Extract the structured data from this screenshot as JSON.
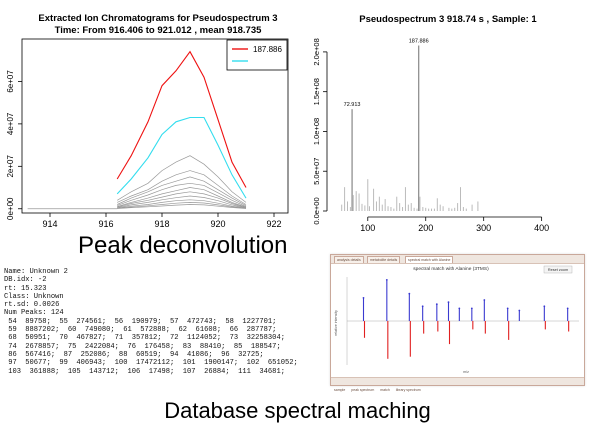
{
  "chart_data": [
    {
      "type": "line",
      "title": "Extracted Ion Chromatograms for  Pseudospectrum 3",
      "subtitle": "Time: From 916.406 to 921.012 , mean 918.735",
      "xlabel": "",
      "ylabel": "",
      "xlim": [
        913,
        922.5
      ],
      "ylim": [
        -2000000,
        80000000
      ],
      "xticks": [
        914,
        916,
        918,
        920,
        922
      ],
      "yticks": [
        0,
        20000000,
        40000000,
        60000000
      ],
      "ytick_labels": [
        "0e+00",
        "2e+07",
        "4e+07",
        "6e+07"
      ],
      "legend": {
        "position": "top-right",
        "entries": [
          {
            "label": "187.886",
            "color": "#ee1111"
          },
          {
            "label": "",
            "color": "#33ddee"
          }
        ]
      },
      "x": [
        916.4,
        916.9,
        917.5,
        918.0,
        918.5,
        919.0,
        919.5,
        920.0,
        920.5,
        921.0
      ],
      "series": [
        {
          "name": "187.886",
          "color": "#ee1111",
          "values": [
            14000000,
            25000000,
            41000000,
            58000000,
            65000000,
            74000000,
            62000000,
            42000000,
            22000000,
            10000000
          ]
        },
        {
          "color": "#33ddee",
          "values": [
            7000000,
            14000000,
            24000000,
            35000000,
            41000000,
            43000000,
            43000000,
            30000000,
            16000000,
            5000000
          ]
        },
        {
          "color": "#999999",
          "values": [
            4000000,
            8000000,
            12000000,
            18000000,
            22000000,
            25000000,
            21000000,
            15000000,
            8000000,
            3000000
          ]
        },
        {
          "color": "#999999",
          "values": [
            3000000,
            6000000,
            9000000,
            13000000,
            16000000,
            18000000,
            16000000,
            11000000,
            6000000,
            2000000
          ]
        },
        {
          "color": "#999999",
          "values": [
            2000000,
            5000000,
            8000000,
            11000000,
            13000000,
            15000000,
            13000000,
            9000000,
            5000000,
            1500000
          ]
        },
        {
          "color": "#999999",
          "values": [
            1500000,
            4000000,
            6500000,
            9000000,
            11000000,
            12000000,
            11000000,
            7500000,
            4000000,
            1000000
          ]
        },
        {
          "color": "#999999",
          "values": [
            1000000,
            3000000,
            5000000,
            7000000,
            8500000,
            10000000,
            9000000,
            6000000,
            3000000,
            800000
          ]
        },
        {
          "color": "#999999",
          "values": [
            800000,
            2500000,
            4000000,
            5500000,
            7000000,
            8000000,
            7000000,
            5000000,
            2500000,
            600000
          ]
        },
        {
          "color": "#999999",
          "values": [
            500000,
            1800000,
            3000000,
            4200000,
            5200000,
            6000000,
            5300000,
            3800000,
            1800000,
            400000
          ]
        },
        {
          "color": "#999999",
          "values": [
            300000,
            1200000,
            2000000,
            3000000,
            3800000,
            4200000,
            3800000,
            2600000,
            1200000,
            300000
          ]
        },
        {
          "color": "#999999",
          "values": [
            200000,
            800000,
            1400000,
            2000000,
            2600000,
            3000000,
            2700000,
            1800000,
            900000,
            200000
          ]
        },
        {
          "color": "#999999",
          "values": [
            100000,
            500000,
            900000,
            1300000,
            1700000,
            2000000,
            1800000,
            1200000,
            600000,
            100000
          ]
        }
      ],
      "baseline_x": [
        913.2,
        916.4
      ],
      "grid": false
    },
    {
      "type": "bar",
      "title": "Pseudospectrum 3 918.74 s , Sample: 1",
      "xlabel": "",
      "ylabel": "",
      "xlim": [
        40,
        480
      ],
      "ylim": [
        0,
        220000000
      ],
      "xticks": [
        100,
        200,
        300,
        400
      ],
      "yticks": [
        0,
        50000000,
        100000000,
        150000000,
        200000000
      ],
      "ytick_labels": [
        "0.0e+00",
        "5.0e+07",
        "1.0e+08",
        "1.5e+08",
        "2.0e+08"
      ],
      "annotations": [
        {
          "x": 72.913,
          "label": "72.913"
        },
        {
          "x": 187.886,
          "label": "187.886"
        }
      ],
      "x": [
        55,
        60,
        65,
        70,
        72.913,
        75,
        80,
        85,
        90,
        95,
        100,
        103,
        110,
        115,
        120,
        125,
        130,
        135,
        140,
        145,
        150,
        155,
        160,
        165,
        170,
        175,
        180,
        185,
        187.886,
        190,
        195,
        200,
        205,
        210,
        215,
        220,
        225,
        230,
        240,
        245,
        250,
        255,
        260,
        265,
        270,
        280,
        290
      ],
      "values": [
        8000000,
        30000000,
        12000000,
        5000000,
        128000000,
        20000000,
        25000000,
        22000000,
        9000000,
        7000000,
        40000000,
        6000000,
        28000000,
        12000000,
        18000000,
        8000000,
        15000000,
        6000000,
        5000000,
        3000000,
        18000000,
        10000000,
        5000000,
        30000000,
        8000000,
        10000000,
        4000000,
        3000000,
        208000000,
        18000000,
        5000000,
        4000000,
        3000000,
        3000000,
        3000000,
        16000000,
        8000000,
        6000000,
        4000000,
        3000000,
        4000000,
        10000000,
        30000000,
        5000000,
        3000000,
        8000000,
        12000000
      ],
      "grid": false
    }
  ],
  "captions": {
    "peak": "Peak deconvolution",
    "database": "Database spectral maching"
  },
  "nist_record": {
    "lines": [
      "Name: Unknown 2",
      "DB.idx: -2",
      "rt: 15.323",
      "Class: Unknown",
      "rt.sd: 0.0026",
      "Num Peaks: 124",
      " 54  89758;  55  274561;  56  190979;  57  472743;  58  1227701;",
      " 59  8887202;  60  749080;  61  572888;  62  61608;  66  287787;",
      " 68  50951;  70  467827;  71  357812;  72  1124052;  73  32258304;",
      " 74  2678857;  75  2422084;  76  176458;  83  88410;  85  188547;",
      " 86  567416;  87  252086;  88  60519;  94  41086;  96  32725;",
      " 97  50677;  99  406943;  100  17472112;  101  1900147;  102  651052;",
      " 103  361888;  105  143712;  106  17498;  107  26884;  111  34681;"
    ]
  },
  "match_panel": {
    "tabs": [
      "analysis details",
      "metabolite details",
      "spectral match with Alanine"
    ],
    "title": "spectral match with Alanine (3TMS)",
    "reset_label": "Reset zoom",
    "y_label": "relative intensity",
    "x_label": "m/z",
    "footer_items": [
      "sample",
      "peak spectrum",
      "match",
      "library spectrum"
    ],
    "peaks_top": [
      {
        "x": 45,
        "v": 0.55,
        "c": "#3a3ad0"
      },
      {
        "x": 73,
        "v": 0.98,
        "c": "#3a3ad0"
      },
      {
        "x": 100,
        "v": 0.65,
        "c": "#3a3ad0"
      },
      {
        "x": 116,
        "v": 0.35,
        "c": "#3a3ad0"
      },
      {
        "x": 133,
        "v": 0.4,
        "c": "#3a3ad0"
      },
      {
        "x": 147,
        "v": 0.45,
        "c": "#3a3ad0"
      },
      {
        "x": 160,
        "v": 0.3,
        "c": "#3a3ad0"
      },
      {
        "x": 175,
        "v": 0.3,
        "c": "#3a3ad0"
      },
      {
        "x": 190,
        "v": 0.5,
        "c": "#3a3ad0"
      },
      {
        "x": 218,
        "v": 0.3,
        "c": "#3a3ad0"
      },
      {
        "x": 232,
        "v": 0.25,
        "c": "#3a3ad0"
      },
      {
        "x": 262,
        "v": 0.35,
        "c": "#3a3ad0"
      },
      {
        "x": 290,
        "v": 0.3,
        "c": "#3a3ad0"
      }
    ],
    "peaks_bottom": [
      {
        "x": 45,
        "v": 0.4,
        "c": "#e02020"
      },
      {
        "x": 73,
        "v": 0.9,
        "c": "#e02020"
      },
      {
        "x": 100,
        "v": 0.85,
        "c": "#e02020"
      },
      {
        "x": 116,
        "v": 0.3,
        "c": "#e02020"
      },
      {
        "x": 133,
        "v": 0.25,
        "c": "#e02020"
      },
      {
        "x": 147,
        "v": 0.55,
        "c": "#e02020"
      },
      {
        "x": 175,
        "v": 0.2,
        "c": "#e02020"
      },
      {
        "x": 190,
        "v": 0.3,
        "c": "#e02020"
      },
      {
        "x": 218,
        "v": 0.45,
        "c": "#e02020"
      },
      {
        "x": 262,
        "v": 0.2,
        "c": "#e02020"
      },
      {
        "x": 290,
        "v": 0.25,
        "c": "#e02020"
      }
    ]
  }
}
